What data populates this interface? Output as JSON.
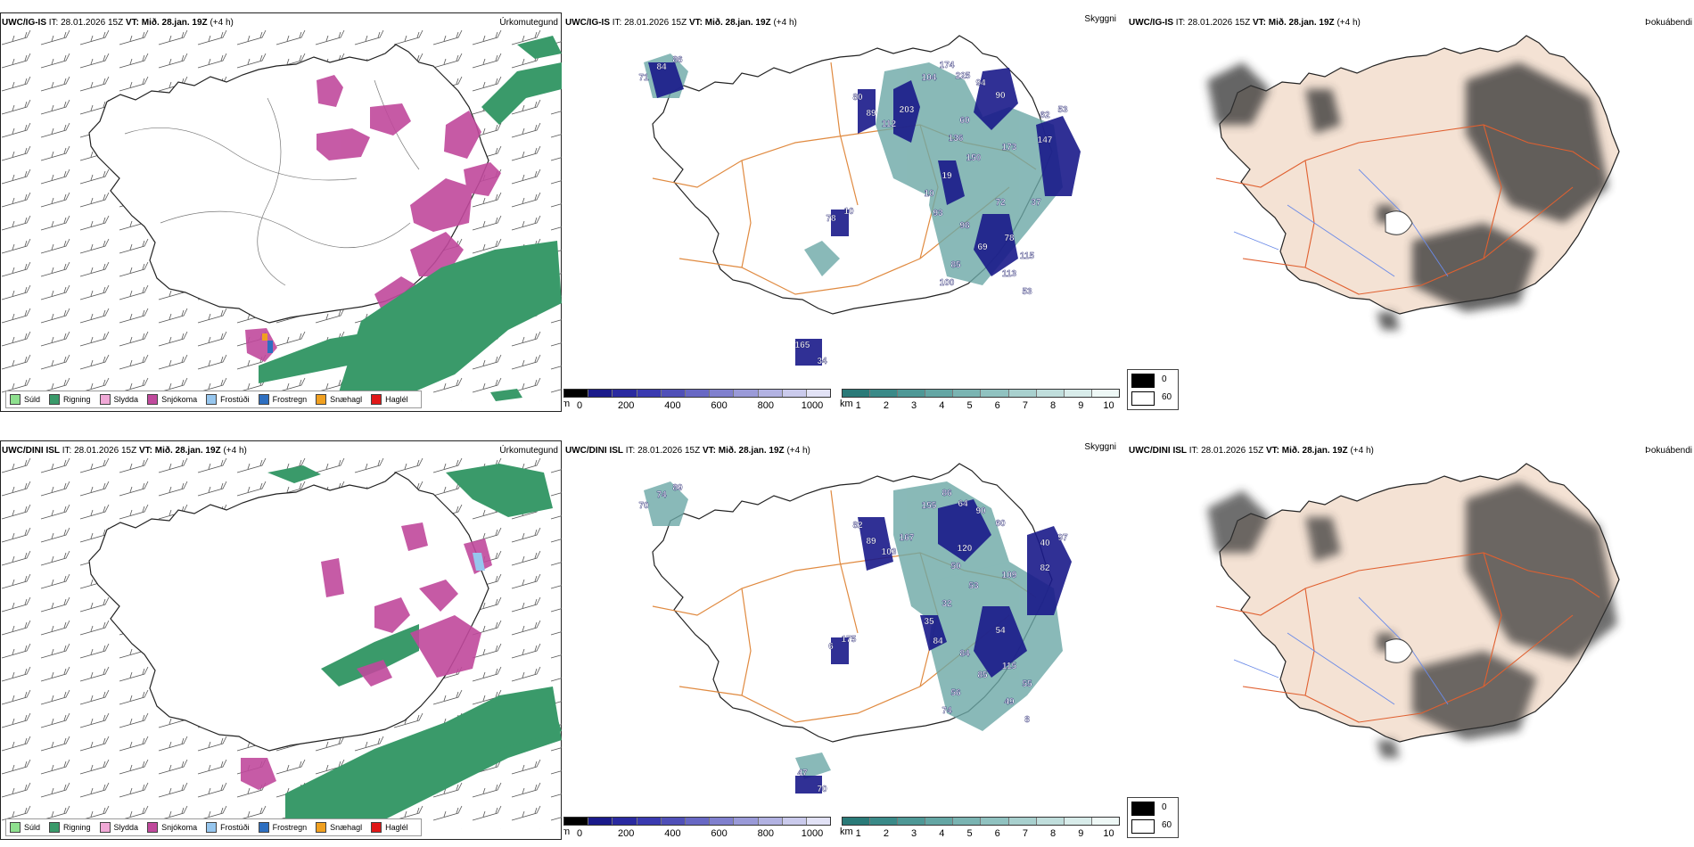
{
  "rows": [
    {
      "model": "UWC/IG-IS",
      "it_label": "IT:",
      "it_value": "28.01.2026 15Z",
      "vt_label": "VT:",
      "vt_value": "Mið. 28.jan. 19Z",
      "lead": "(+4 h)",
      "cloud_labels": [
        "84",
        "86",
        "71",
        "80",
        "89",
        "112",
        "203",
        "104",
        "174",
        "225",
        "94",
        "90",
        "62",
        "53",
        "60",
        "136",
        "150",
        "173",
        "147",
        "19",
        "10",
        "93",
        "98",
        "72",
        "78",
        "115",
        "69",
        "85",
        "113",
        "100",
        "53",
        "78",
        "10",
        "165",
        "34",
        "37"
      ]
    },
    {
      "model": "UWC/DINI ISL",
      "it_label": "IT:",
      "it_value": "28.01.2026 15Z",
      "vt_label": "VT:",
      "vt_value": "Mið. 28.jan. 19Z",
      "lead": "(+4 h)",
      "cloud_labels": [
        "74",
        "89",
        "70",
        "82",
        "89",
        "103",
        "167",
        "155",
        "86",
        "64",
        "90",
        "60",
        "40",
        "97",
        "120",
        "50",
        "53",
        "109",
        "82",
        "32",
        "35",
        "84",
        "84",
        "54",
        "115",
        "55",
        "85",
        "56",
        "49",
        "74",
        "8",
        "6",
        "175",
        "47",
        "70"
      ]
    }
  ],
  "panel_titles": {
    "precip": "Úrkomutegund",
    "cloud": "Skyggni",
    "fog": "Þokuábendi"
  },
  "precip_legend": [
    {
      "label": "Súld",
      "color": "#8ee08e"
    },
    {
      "label": "Rigning",
      "color": "#3a9a6a"
    },
    {
      "label": "Slydda",
      "color": "#f0a8d6"
    },
    {
      "label": "Snjókoma",
      "color": "#c0499c"
    },
    {
      "label": "Frostúði",
      "color": "#96c6ee"
    },
    {
      "label": "Frostregn",
      "color": "#2e6fc0"
    },
    {
      "label": "Snæhagl",
      "color": "#f0a020"
    },
    {
      "label": "Haglél",
      "color": "#e01818"
    }
  ],
  "cloud_base_bar": {
    "unit": "m",
    "ticks": [
      "0",
      "200",
      "400",
      "600",
      "800",
      "1000"
    ],
    "colors": [
      "#000000",
      "#1a1a8a",
      "#2a2aa0",
      "#3a3ab0",
      "#5050b8",
      "#6868c4",
      "#8080ce",
      "#9a9ad8",
      "#b2b2e2",
      "#cacaec",
      "#e2e2f6"
    ]
  },
  "visibility_bar": {
    "unit": "km",
    "ticks": [
      "1",
      "2",
      "3",
      "4",
      "5",
      "6",
      "7",
      "8",
      "9",
      "10"
    ],
    "colors": [
      "#2a7a78",
      "#3a8a88",
      "#4e9896",
      "#64a6a4",
      "#7ab4b2",
      "#90c2c0",
      "#a8d0ce",
      "#c0dedc",
      "#d8ecea",
      "#eef8f6"
    ]
  },
  "fog_legend": {
    "high": "0",
    "low": "60"
  },
  "colors": {
    "land_fog": "#f4e2d4",
    "road": "#e06030",
    "road_cloud": "#e08a40",
    "river": "#6a8ae8",
    "rain": "#3a9a6a",
    "snow": "#c0499c"
  }
}
